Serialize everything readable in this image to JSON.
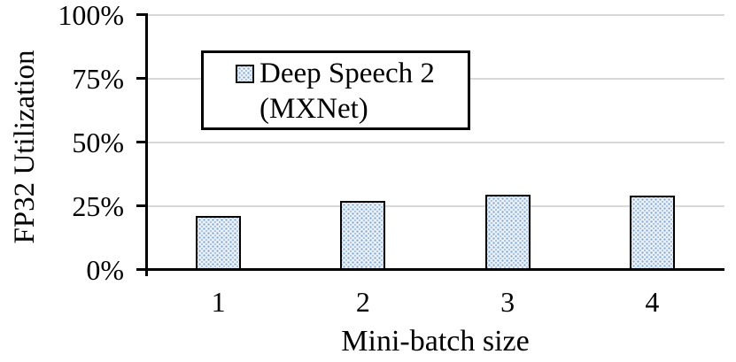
{
  "chart_data": {
    "type": "bar",
    "title": "",
    "categories": [
      "1",
      "2",
      "3",
      "4"
    ],
    "series": [
      {
        "name": "Deep Speech 2 (MXNet)",
        "values": [
          21,
          27,
          29.5,
          29
        ]
      }
    ],
    "xlabel": "Mini-batch size",
    "ylabel": "FP32 Utilization",
    "ylim": [
      0,
      100
    ],
    "yticks": [
      0,
      25,
      50,
      75,
      100
    ],
    "ytick_labels": [
      "0%",
      "25%",
      "50%",
      "75%",
      "100%"
    ],
    "grid": true,
    "legend": {
      "position": "upper-left-inside",
      "lines": [
        "Deep Speech 2",
        "(MXNet)"
      ]
    }
  },
  "colors": {
    "background": "#ffffff",
    "bar_fill_base": "#eef3fa",
    "bar_fill_dot": "#84abd4",
    "bar_border": "#000000",
    "gridline": "#d9d9d9",
    "axis": "#000000",
    "text": "#000000"
  }
}
